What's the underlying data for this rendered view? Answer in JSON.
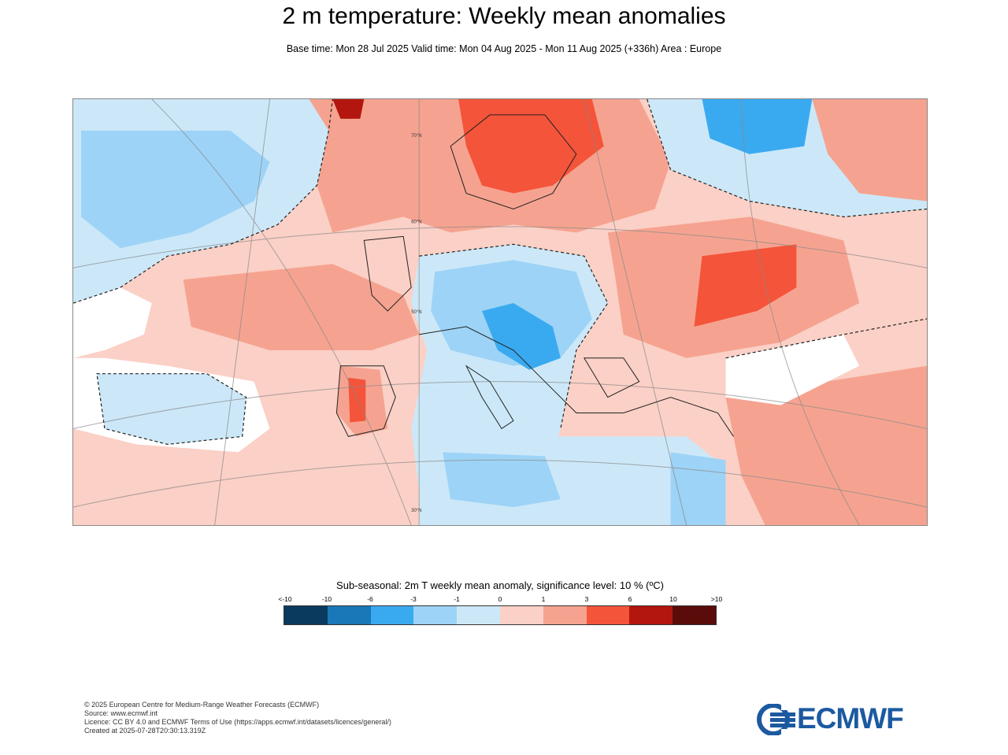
{
  "title": "2 m temperature: Weekly mean anomalies",
  "subtitle": "Base time: Mon 28 Jul 2025 Valid time: Mon 04 Aug 2025 - Mon 11 Aug 2025 (+336h) Area : Europe",
  "map": {
    "lat_labels": [
      "70°N",
      "60°N",
      "50°N",
      "30°N"
    ]
  },
  "legend": {
    "title": "Sub-seasonal: 2m T weekly mean anomaly, significance level: 10 % (ºC)",
    "labels": [
      "<-10",
      "-10",
      "-6",
      "-3",
      "-1",
      "0",
      "1",
      "3",
      "6",
      "10",
      ">10"
    ],
    "colors": [
      "#0a3a5e",
      "#1a78b8",
      "#3aaaf0",
      "#9dd3f6",
      "#cce8f8",
      "#fbd0c6",
      "#f5a390",
      "#f4543a",
      "#b3160e",
      "#5a0c0a"
    ]
  },
  "footer": {
    "lines": [
      "© 2025 European Centre for Medium-Range Weather Forecasts (ECMWF)",
      "Source: www.ecmwf.int",
      "Licence: CC BY 4.0 and ECMWF Terms of Use (https://apps.ecmwf.int/datasets/licences/general/)",
      "Created at 2025-07-28T20:30:13.319Z"
    ]
  },
  "logo": {
    "text": "ECMWF",
    "color": "#1c5aa0"
  }
}
